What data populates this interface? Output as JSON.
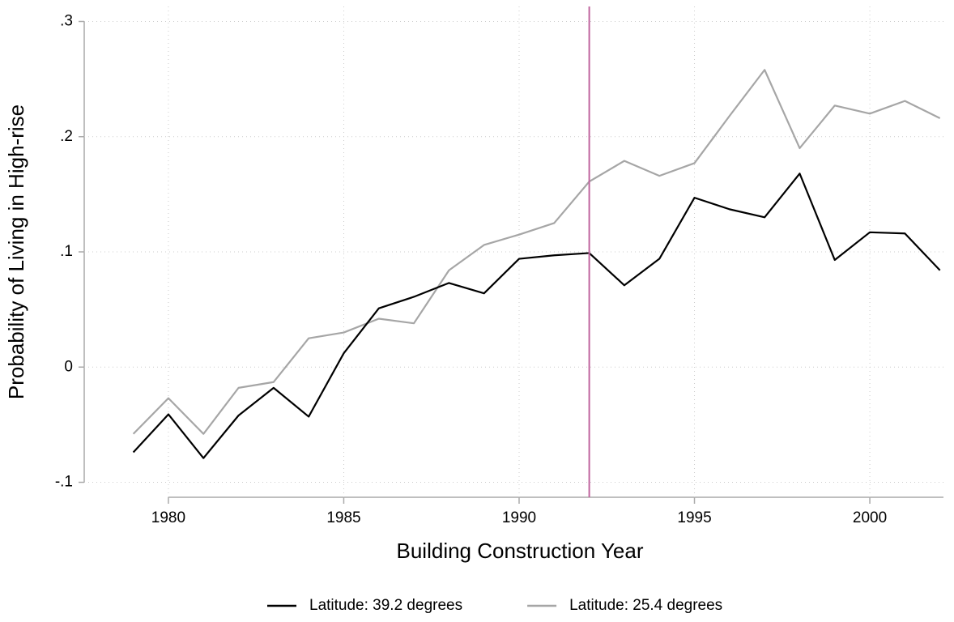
{
  "chart_data": {
    "type": "line",
    "x_label": "Building Construction Year",
    "y_label": "Probability of Living in High-rise",
    "x": [
      1979,
      1980,
      1981,
      1982,
      1983,
      1984,
      1985,
      1986,
      1987,
      1988,
      1989,
      1990,
      1991,
      1992,
      1993,
      1994,
      1995,
      1996,
      1997,
      1998,
      1999,
      2000,
      2001,
      2002
    ],
    "series": [
      {
        "name": "Latitude: 39.2 degrees",
        "color": "#000000",
        "values": [
          -0.074,
          -0.041,
          -0.079,
          -0.042,
          -0.018,
          -0.043,
          0.012,
          0.051,
          0.061,
          0.073,
          0.064,
          0.094,
          0.097,
          0.099,
          0.071,
          0.094,
          0.147,
          0.137,
          0.13,
          0.168,
          0.093,
          0.117,
          0.116,
          0.084
        ]
      },
      {
        "name": "Latitude: 25.4 degrees",
        "color": "#a6a6a6",
        "values": [
          -0.058,
          -0.027,
          -0.058,
          -0.018,
          -0.013,
          0.025,
          0.03,
          0.042,
          0.038,
          0.084,
          0.106,
          0.115,
          0.125,
          0.161,
          0.179,
          0.166,
          0.177,
          0.218,
          0.258,
          0.19,
          0.227,
          0.22,
          0.231,
          0.216
        ]
      }
    ],
    "vline": {
      "x": 1992,
      "color": "#c0649e"
    },
    "xlim": [
      1977.6,
      2002.1
    ],
    "ylim": [
      -0.113,
      0.313
    ],
    "xticks": [
      1980,
      1985,
      1990,
      1995,
      2000
    ],
    "yticks": [
      {
        "value": -0.1,
        "label": "-.1"
      },
      0,
      {
        "value": 0.1,
        "label": ".1"
      },
      {
        "value": 0.2,
        "label": ".2"
      },
      {
        "value": 0.3,
        "label": ".3"
      }
    ],
    "grid": true,
    "legend": "bottom"
  }
}
